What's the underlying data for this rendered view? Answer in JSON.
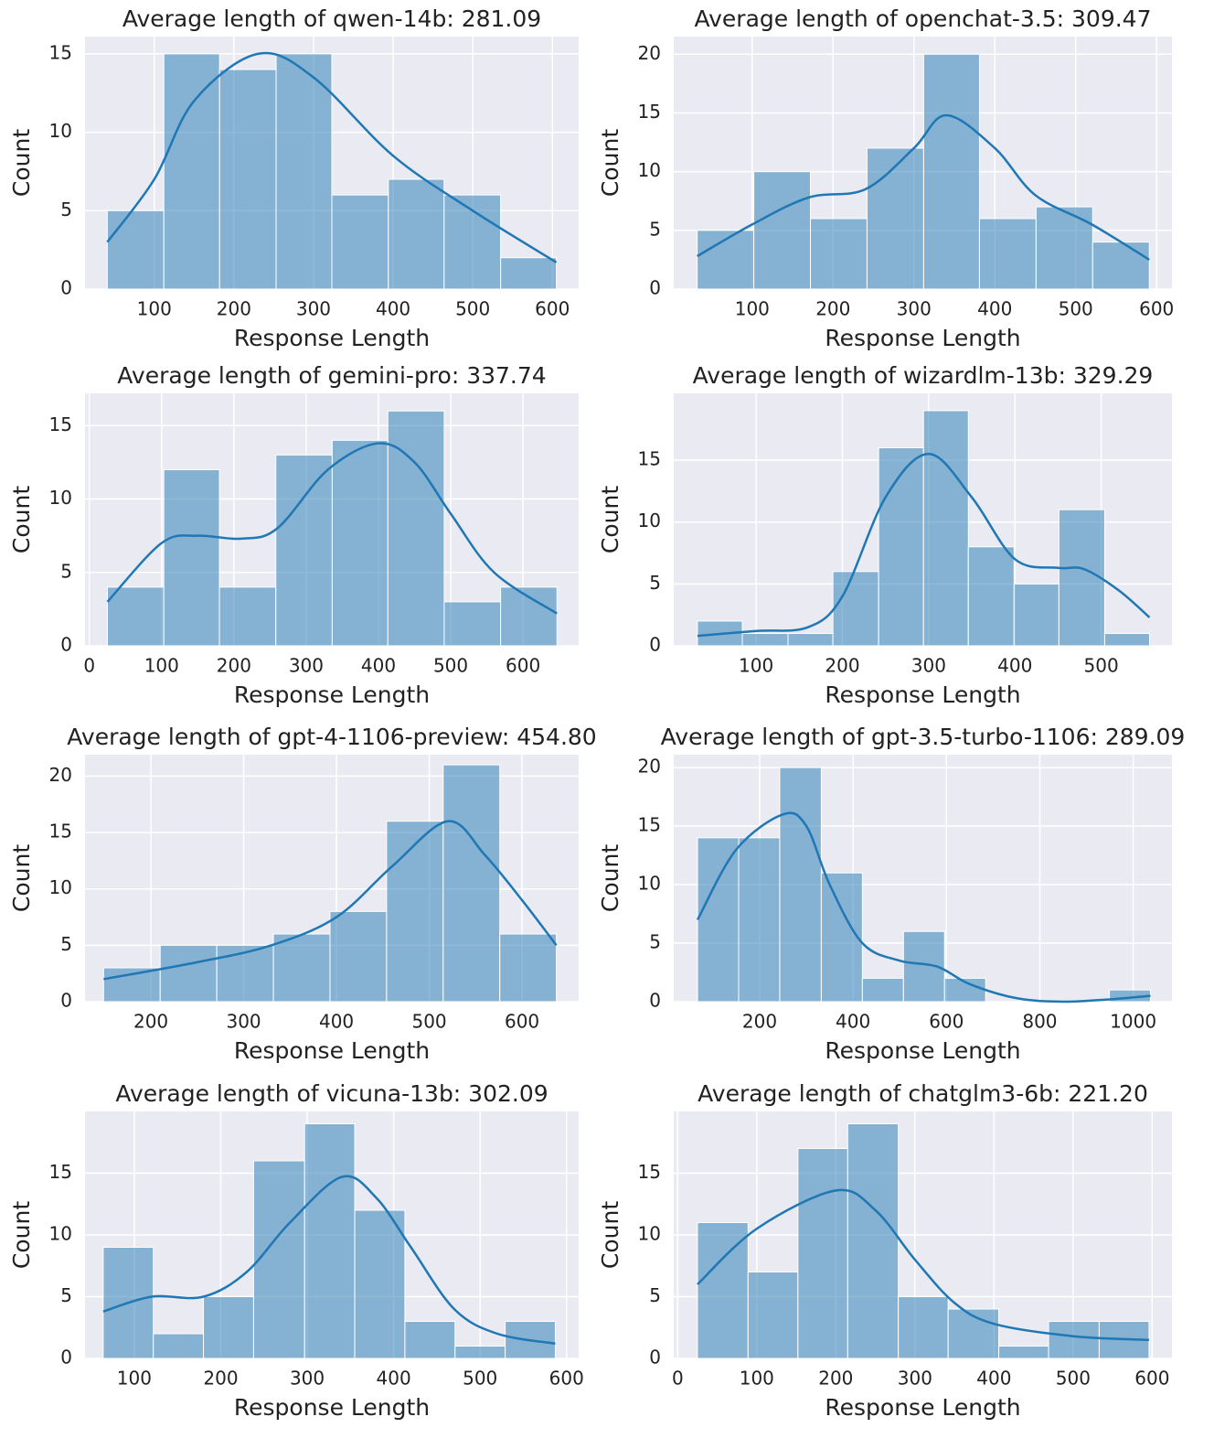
{
  "chart_data": [
    {
      "type": "histogram",
      "title": "Average length of qwen-14b: 281.09",
      "x_label": "Response Length",
      "y_label": "Count",
      "bins": [
        41,
        112,
        182,
        253,
        323,
        394,
        464,
        535,
        605
      ],
      "counts": [
        5,
        15,
        14,
        15,
        6,
        7,
        6,
        2
      ],
      "color": "#1f77b4",
      "curve": {
        "x": [
          41,
          100,
          150,
          230,
          300,
          400,
          500,
          605
        ],
        "values": [
          3,
          7,
          12,
          15,
          13.5,
          8.5,
          5,
          1.7
        ]
      },
      "xlim": [
        13,
        633
      ],
      "ylim": [
        0,
        16.1
      ],
      "xticks": [
        100,
        200,
        300,
        400,
        500,
        600
      ],
      "yticks": [
        0,
        5,
        10,
        15
      ],
      "grid": true
    },
    {
      "type": "histogram",
      "title": "Average length of openchat-3.5: 309.47",
      "x_label": "Response Length",
      "y_label": "Count",
      "bins": [
        32,
        102,
        172,
        242,
        312,
        381,
        451,
        521,
        591
      ],
      "counts": [
        5,
        10,
        6,
        12,
        20,
        6,
        7,
        4
      ],
      "color": "#1f77b4",
      "curve": {
        "x": [
          32,
          100,
          170,
          240,
          300,
          340,
          400,
          450,
          520,
          591
        ],
        "values": [
          2.8,
          5.5,
          7.8,
          8.5,
          12,
          14.8,
          12,
          8,
          5.5,
          2.5
        ]
      },
      "xlim": [
        3,
        619
      ],
      "ylim": [
        0,
        21.5
      ],
      "xticks": [
        100,
        200,
        300,
        400,
        500,
        600
      ],
      "yticks": [
        0,
        5,
        10,
        15,
        20
      ],
      "grid": true
    },
    {
      "type": "histogram",
      "title": "Average length of gemini-pro: 337.74",
      "x_label": "Response Length",
      "y_label": "Count",
      "bins": [
        25,
        103,
        180,
        258,
        336,
        413,
        491,
        569,
        647
      ],
      "counts": [
        4,
        12,
        4,
        13,
        14,
        16,
        3,
        4
      ],
      "color": "#1f77b4",
      "curve": {
        "x": [
          25,
          100,
          150,
          210,
          260,
          330,
          400,
          450,
          500,
          560,
          647
        ],
        "values": [
          3,
          7,
          7.5,
          7.3,
          8,
          12,
          13.8,
          12.5,
          9,
          5,
          2.2
        ]
      },
      "xlim": [
        -6,
        677
      ],
      "ylim": [
        0,
        17.2
      ],
      "xticks": [
        0,
        100,
        200,
        300,
        400,
        500,
        600
      ],
      "yticks": [
        0,
        5,
        10,
        15
      ],
      "grid": true
    },
    {
      "type": "histogram",
      "title": "Average length of wizardlm-13b: 329.29",
      "x_label": "Response Length",
      "y_label": "Count",
      "bins": [
        32,
        84,
        137,
        189,
        242,
        294,
        346,
        399,
        451,
        504,
        556
      ],
      "counts": [
        2,
        1,
        1,
        6,
        16,
        19,
        8,
        5,
        11,
        1
      ],
      "color": "#1f77b4",
      "curve": {
        "x": [
          32,
          100,
          160,
          200,
          250,
          300,
          350,
          400,
          450,
          480,
          520,
          556
        ],
        "values": [
          0.8,
          1.2,
          1.5,
          4,
          12,
          15.5,
          12,
          7,
          6.3,
          6.2,
          4.5,
          2.3
        ]
      },
      "xlim": [
        4.5,
        582
      ],
      "ylim": [
        0,
        20.4
      ],
      "xticks": [
        100,
        200,
        300,
        400,
        500
      ],
      "yticks": [
        0,
        5,
        10,
        15
      ],
      "grid": true
    },
    {
      "type": "histogram",
      "title": "Average length of gpt-4-1106-preview: 454.80",
      "x_label": "Response Length",
      "y_label": "Count",
      "bins": [
        149,
        210,
        271,
        332,
        393,
        454,
        515,
        576,
        637
      ],
      "counts": [
        3,
        5,
        5,
        6,
        8,
        16,
        21,
        6
      ],
      "color": "#1f77b4",
      "curve": {
        "x": [
          149,
          250,
          330,
          400,
          460,
          520,
          560,
          600,
          637
        ],
        "values": [
          2,
          3.5,
          5,
          7.5,
          12,
          16,
          13,
          9,
          5
        ]
      },
      "xlim": [
        129,
        661
      ],
      "ylim": [
        0,
        21.9
      ],
      "xticks": [
        200,
        300,
        400,
        500,
        600
      ],
      "yticks": [
        0,
        5,
        10,
        15,
        20
      ],
      "grid": true
    },
    {
      "type": "histogram",
      "title": "Average length of gpt-3.5-turbo-1106: 289.09",
      "x_label": "Response Length",
      "y_label": "Count",
      "bins": [
        67,
        155,
        243,
        332,
        420,
        508,
        596,
        684,
        773,
        861,
        949,
        1037
      ],
      "counts": [
        14,
        14,
        20,
        11,
        2,
        6,
        2,
        0,
        0,
        0,
        1
      ],
      "color": "#1f77b4",
      "curve": {
        "x": [
          67,
          150,
          250,
          300,
          350,
          420,
          500,
          580,
          650,
          750,
          850,
          950,
          1037
        ],
        "values": [
          7,
          13,
          16,
          15,
          10,
          5,
          3.5,
          3,
          1.5,
          0.3,
          0,
          0.2,
          0.5
        ]
      },
      "xlim": [
        16,
        1083
      ],
      "ylim": [
        0,
        21.1
      ],
      "xticks": [
        200,
        400,
        600,
        800,
        1000
      ],
      "yticks": [
        0,
        5,
        10,
        15,
        20
      ],
      "grid": true
    },
    {
      "type": "histogram",
      "title": "Average length of vicuna-13b: 302.09",
      "x_label": "Response Length",
      "y_label": "Count",
      "bins": [
        64,
        122,
        180,
        238,
        297,
        355,
        413,
        471,
        529,
        587
      ],
      "counts": [
        9,
        2,
        5,
        16,
        19,
        12,
        3,
        1,
        3
      ],
      "color": "#1f77b4",
      "curve": {
        "x": [
          64,
          120,
          180,
          230,
          280,
          340,
          380,
          420,
          470,
          520,
          587
        ],
        "values": [
          3.8,
          5,
          5,
          7,
          11,
          14.7,
          13,
          9,
          4,
          2,
          1.2
        ]
      },
      "xlim": [
        43,
        614
      ],
      "ylim": [
        0,
        20
      ],
      "xticks": [
        100,
        200,
        300,
        400,
        500,
        600
      ],
      "yticks": [
        0,
        5,
        10,
        15
      ],
      "grid": true
    },
    {
      "type": "histogram",
      "title": "Average length of chatglm3-6b: 221.20",
      "x_label": "Response Length",
      "y_label": "Count",
      "bins": [
        25,
        89,
        152,
        215,
        279,
        342,
        406,
        469,
        533,
        596
      ],
      "counts": [
        11,
        7,
        17,
        19,
        5,
        4,
        1,
        3,
        3
      ],
      "color": "#1f77b4",
      "curve": {
        "x": [
          25,
          100,
          200,
          250,
          300,
          350,
          400,
          500,
          596
        ],
        "values": [
          6,
          10.5,
          13.6,
          12,
          8,
          4.5,
          2.8,
          1.8,
          1.5
        ]
      },
      "xlim": [
        -5,
        625
      ],
      "ylim": [
        0,
        20
      ],
      "xticks": [
        0,
        100,
        200,
        300,
        400,
        500,
        600
      ],
      "yticks": [
        0,
        5,
        10,
        15
      ],
      "grid": true
    }
  ]
}
